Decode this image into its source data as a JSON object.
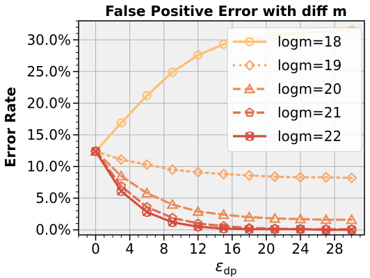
{
  "chart_data": {
    "type": "line",
    "title": "False Positive Error with  diff m",
    "ylabel": "Error Rate",
    "xlabel": {
      "base": "ε",
      "sub": "dp"
    },
    "xlim": [
      -2,
      31.5
    ],
    "ylim": [
      -0.8,
      33.0
    ],
    "x_ticks": [
      0,
      4,
      8,
      12,
      16,
      20,
      24,
      28
    ],
    "x_tick_labels": [
      "0",
      "4",
      "8",
      "12",
      "16",
      "20",
      "24",
      "28"
    ],
    "y_ticks": [
      0,
      5,
      10,
      15,
      20,
      25,
      30
    ],
    "y_tick_labels": [
      "0.0%",
      "5.0%",
      "10.0%",
      "15.0%",
      "20.0%",
      "25.0%",
      "30.0%"
    ],
    "grid": true,
    "legend_position": "top-right",
    "x": [
      0,
      3,
      6,
      9,
      12,
      15,
      18,
      21,
      24,
      27,
      30
    ],
    "series": [
      {
        "name": "logm=18",
        "color": "#fdc070",
        "dash": "solid",
        "marker": "circle",
        "values": [
          12.4,
          16.9,
          21.2,
          24.9,
          27.6,
          29.3,
          30.2,
          30.8,
          31.1,
          31.3,
          31.5
        ]
      },
      {
        "name": "logm=19",
        "color": "#f9a86a",
        "dash": "dotted",
        "marker": "diamond",
        "values": [
          12.4,
          11.1,
          10.3,
          9.5,
          9.1,
          8.8,
          8.6,
          8.4,
          8.3,
          8.3,
          8.2
        ]
      },
      {
        "name": "logm=20",
        "color": "#eb8a58",
        "dash": "dashed",
        "marker": "triangle",
        "values": [
          12.4,
          8.5,
          5.8,
          4.0,
          2.9,
          2.4,
          2.0,
          1.8,
          1.7,
          1.6,
          1.6
        ]
      },
      {
        "name": "logm=21",
        "color": "#e06c4d",
        "dash": "dashed",
        "marker": "pentagon",
        "values": [
          12.4,
          6.9,
          3.6,
          1.9,
          1.0,
          0.6,
          0.3,
          0.2,
          0.1,
          0.1,
          0.1
        ]
      },
      {
        "name": "logm=22",
        "color": "#d44c40",
        "dash": "solid",
        "marker": "x",
        "values": [
          12.4,
          6.1,
          2.8,
          1.2,
          0.5,
          0.2,
          0.1,
          0.1,
          0.1,
          0.0,
          0.0
        ]
      }
    ]
  }
}
